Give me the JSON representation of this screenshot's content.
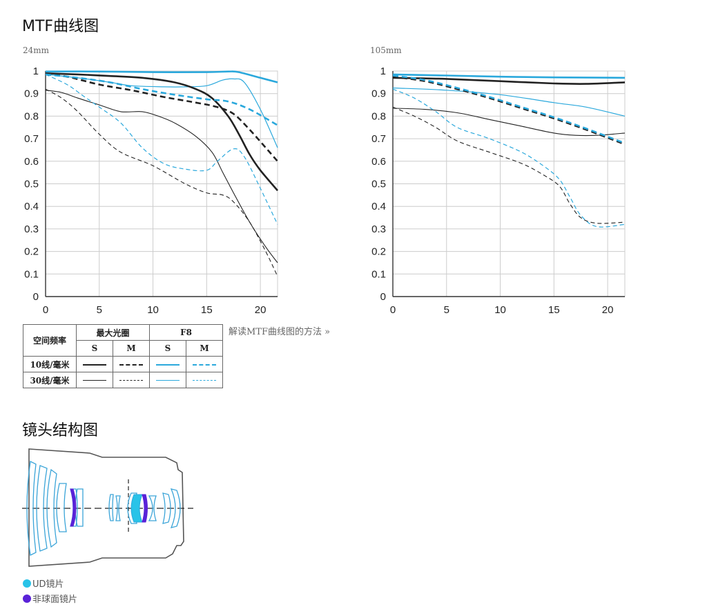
{
  "headings": {
    "mtf": "MTF曲线图",
    "lens": "镜头结构图"
  },
  "chart_data": [
    {
      "type": "line",
      "title": "24mm",
      "xlim": [
        0,
        21.6
      ],
      "ylim": [
        0,
        1
      ],
      "xticks": [
        "0",
        "5",
        "10",
        "15",
        "20"
      ],
      "yticks": [
        "0",
        "0.1",
        "0.2",
        "0.3",
        "0.4",
        "0.5",
        "0.6",
        "0.7",
        "0.8",
        "0.9",
        "1"
      ],
      "grid": true,
      "series": [
        {
          "style": "black-thick-solid",
          "points": [
            [
              0,
              0.99
            ],
            [
              3,
              0.985
            ],
            [
              6,
              0.978
            ],
            [
              9,
              0.97
            ],
            [
              12,
              0.95
            ],
            [
              14,
              0.92
            ],
            [
              15.5,
              0.88
            ],
            [
              17,
              0.8
            ],
            [
              18,
              0.72
            ],
            [
              19,
              0.63
            ],
            [
              20,
              0.56
            ],
            [
              21.6,
              0.47
            ]
          ]
        },
        {
          "style": "black-thick-dashed",
          "points": [
            [
              0,
              0.985
            ],
            [
              2,
              0.975
            ],
            [
              5,
              0.94
            ],
            [
              8,
              0.915
            ],
            [
              11,
              0.885
            ],
            [
              14,
              0.86
            ],
            [
              16,
              0.84
            ],
            [
              17.5,
              0.81
            ],
            [
              19,
              0.74
            ],
            [
              20.5,
              0.66
            ],
            [
              21.6,
              0.6
            ]
          ]
        },
        {
          "style": "blue-thick-solid",
          "points": [
            [
              0,
              0.998
            ],
            [
              5,
              0.998
            ],
            [
              10,
              0.995
            ],
            [
              15,
              0.995
            ],
            [
              17,
              0.998
            ],
            [
              18,
              0.995
            ],
            [
              20,
              0.97
            ],
            [
              21.6,
              0.95
            ]
          ]
        },
        {
          "style": "blue-thick-dashed",
          "points": [
            [
              0,
              0.985
            ],
            [
              3,
              0.97
            ],
            [
              6,
              0.95
            ],
            [
              9,
              0.92
            ],
            [
              12,
              0.895
            ],
            [
              15,
              0.875
            ],
            [
              17,
              0.865
            ],
            [
              19,
              0.83
            ],
            [
              21.6,
              0.76
            ]
          ]
        },
        {
          "style": "black-thin-solid",
          "points": [
            [
              0,
              0.915
            ],
            [
              1.5,
              0.905
            ],
            [
              3,
              0.88
            ],
            [
              5,
              0.85
            ],
            [
              7,
              0.82
            ],
            [
              9,
              0.82
            ],
            [
              10.5,
              0.8
            ],
            [
              12,
              0.77
            ],
            [
              14,
              0.71
            ],
            [
              15.5,
              0.64
            ],
            [
              16.5,
              0.55
            ],
            [
              17.5,
              0.46
            ],
            [
              19,
              0.33
            ],
            [
              20.5,
              0.22
            ],
            [
              21.6,
              0.15
            ]
          ]
        },
        {
          "style": "black-thin-dashed",
          "points": [
            [
              0,
              0.92
            ],
            [
              1.5,
              0.88
            ],
            [
              3,
              0.82
            ],
            [
              5,
              0.72
            ],
            [
              7,
              0.64
            ],
            [
              10,
              0.58
            ],
            [
              13,
              0.5
            ],
            [
              15,
              0.46
            ],
            [
              16.5,
              0.45
            ],
            [
              17.5,
              0.42
            ],
            [
              19,
              0.33
            ],
            [
              20.5,
              0.2
            ],
            [
              21.6,
              0.09
            ]
          ]
        },
        {
          "style": "blue-thin-solid",
          "points": [
            [
              0,
              0.985
            ],
            [
              3,
              0.97
            ],
            [
              6,
              0.95
            ],
            [
              8,
              0.935
            ],
            [
              11,
              0.93
            ],
            [
              13,
              0.93
            ],
            [
              15,
              0.935
            ],
            [
              16.5,
              0.96
            ],
            [
              17.5,
              0.965
            ],
            [
              18.5,
              0.95
            ],
            [
              20,
              0.83
            ],
            [
              21.6,
              0.66
            ]
          ]
        },
        {
          "style": "blue-thin-dashed",
          "points": [
            [
              0,
              0.985
            ],
            [
              2,
              0.94
            ],
            [
              3.5,
              0.89
            ],
            [
              5,
              0.84
            ],
            [
              7,
              0.77
            ],
            [
              9,
              0.66
            ],
            [
              11,
              0.59
            ],
            [
              13,
              0.565
            ],
            [
              15,
              0.56
            ],
            [
              16,
              0.6
            ],
            [
              17.5,
              0.655
            ],
            [
              18.5,
              0.62
            ],
            [
              20,
              0.48
            ],
            [
              21.6,
              0.32
            ]
          ]
        }
      ]
    },
    {
      "type": "line",
      "title": "105mm",
      "xlim": [
        0,
        21.6
      ],
      "ylim": [
        0,
        1
      ],
      "xticks": [
        "0",
        "5",
        "10",
        "15",
        "20"
      ],
      "yticks": [
        "0",
        "0.1",
        "0.2",
        "0.3",
        "0.4",
        "0.5",
        "0.6",
        "0.7",
        "0.8",
        "0.9",
        "1"
      ],
      "grid": true,
      "series": [
        {
          "style": "black-thick-solid",
          "points": [
            [
              0,
              0.97
            ],
            [
              5,
              0.965
            ],
            [
              10,
              0.955
            ],
            [
              15,
              0.945
            ],
            [
              18,
              0.943
            ],
            [
              21.6,
              0.95
            ]
          ]
        },
        {
          "style": "black-thick-dashed",
          "points": [
            [
              0,
              0.975
            ],
            [
              3,
              0.955
            ],
            [
              6,
              0.92
            ],
            [
              9,
              0.88
            ],
            [
              12,
              0.835
            ],
            [
              15,
              0.79
            ],
            [
              18,
              0.74
            ],
            [
              21.6,
              0.675
            ]
          ]
        },
        {
          "style": "blue-thick-solid",
          "points": [
            [
              0,
              0.985
            ],
            [
              5,
              0.98
            ],
            [
              10,
              0.975
            ],
            [
              15,
              0.972
            ],
            [
              21.6,
              0.97
            ]
          ]
        },
        {
          "style": "blue-thick-dashed",
          "points": [
            [
              0,
              0.98
            ],
            [
              3,
              0.96
            ],
            [
              6,
              0.925
            ],
            [
              9,
              0.885
            ],
            [
              12,
              0.84
            ],
            [
              15,
              0.795
            ],
            [
              18,
              0.745
            ],
            [
              21.6,
              0.68
            ]
          ]
        },
        {
          "style": "black-thin-solid",
          "points": [
            [
              0,
              0.835
            ],
            [
              3,
              0.83
            ],
            [
              6,
              0.815
            ],
            [
              9,
              0.785
            ],
            [
              12,
              0.755
            ],
            [
              15,
              0.725
            ],
            [
              17,
              0.715
            ],
            [
              19,
              0.715
            ],
            [
              21.6,
              0.725
            ]
          ]
        },
        {
          "style": "black-thin-dashed",
          "points": [
            [
              0,
              0.84
            ],
            [
              2,
              0.8
            ],
            [
              4,
              0.75
            ],
            [
              6,
              0.69
            ],
            [
              9,
              0.64
            ],
            [
              12,
              0.59
            ],
            [
              14,
              0.54
            ],
            [
              15.5,
              0.49
            ],
            [
              16.5,
              0.41
            ],
            [
              17.5,
              0.35
            ],
            [
              19,
              0.325
            ],
            [
              21.6,
              0.33
            ]
          ]
        },
        {
          "style": "blue-thin-solid",
          "points": [
            [
              0,
              0.925
            ],
            [
              5,
              0.915
            ],
            [
              10,
              0.895
            ],
            [
              15,
              0.86
            ],
            [
              18,
              0.84
            ],
            [
              21.6,
              0.8
            ]
          ]
        },
        {
          "style": "blue-thin-dashed",
          "points": [
            [
              0,
              0.92
            ],
            [
              2,
              0.88
            ],
            [
              4,
              0.82
            ],
            [
              6,
              0.75
            ],
            [
              9,
              0.7
            ],
            [
              12,
              0.64
            ],
            [
              14,
              0.58
            ],
            [
              15.5,
              0.52
            ],
            [
              16.5,
              0.44
            ],
            [
              17.5,
              0.36
            ],
            [
              19,
              0.31
            ],
            [
              21.6,
              0.32
            ]
          ]
        }
      ]
    }
  ],
  "legend_table": {
    "freq_header": "空间频率",
    "col_max": "最大光圈",
    "col_f8": "F8",
    "s": "S",
    "m": "M",
    "row1": "10线/毫米",
    "row2": "30线/毫米"
  },
  "howto_link": "解读MTF曲线图的方法 »",
  "lens_legend": [
    {
      "label": "UD镜片",
      "color": "#29c3e8"
    },
    {
      "label": "非球面镜片",
      "color": "#5a22d8"
    }
  ],
  "colors": {
    "black": "#222222",
    "blue": "#2aa8dc",
    "grid": "#cccccc"
  }
}
